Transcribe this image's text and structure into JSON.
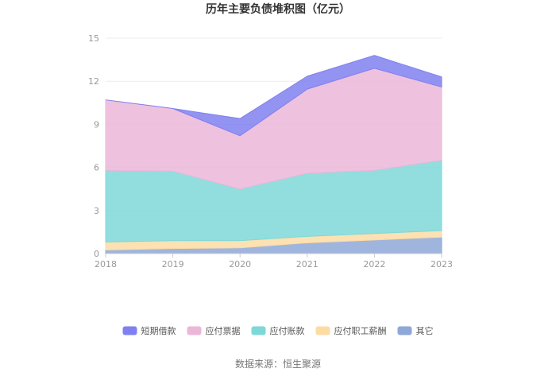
{
  "chart_data": {
    "type": "area",
    "stacked": true,
    "title": "历年主要负债堆积图（亿元）",
    "source": "数据来源：恒生聚源",
    "categories": [
      "2018",
      "2019",
      "2020",
      "2021",
      "2022",
      "2023"
    ],
    "ylim": [
      0,
      15
    ],
    "yticks": [
      "0",
      "3",
      "6",
      "9",
      "12",
      "15"
    ],
    "grid": true,
    "legend_position": "bottom",
    "series": [
      {
        "name": "其它",
        "color": "#8fa8d8",
        "values": [
          0.25,
          0.35,
          0.4,
          0.75,
          0.95,
          1.15
        ]
      },
      {
        "name": "应付职工薪酬",
        "color": "#fcdca4",
        "values": [
          0.55,
          0.55,
          0.5,
          0.45,
          0.45,
          0.45
        ]
      },
      {
        "name": "应付账款",
        "color": "#7fd8d8",
        "values": [
          5.0,
          4.85,
          3.6,
          4.4,
          4.4,
          4.9
        ]
      },
      {
        "name": "应付票据",
        "color": "#ebb7d9",
        "values": [
          4.9,
          4.35,
          3.7,
          5.85,
          7.1,
          5.1
        ]
      },
      {
        "name": "短期借款",
        "color": "#8080f0",
        "values": [
          0.0,
          0.0,
          1.2,
          0.9,
          0.9,
          0.7
        ]
      }
    ],
    "legend_order": [
      "短期借款",
      "应付票据",
      "应付账款",
      "应付职工薪酬",
      "其它"
    ]
  }
}
